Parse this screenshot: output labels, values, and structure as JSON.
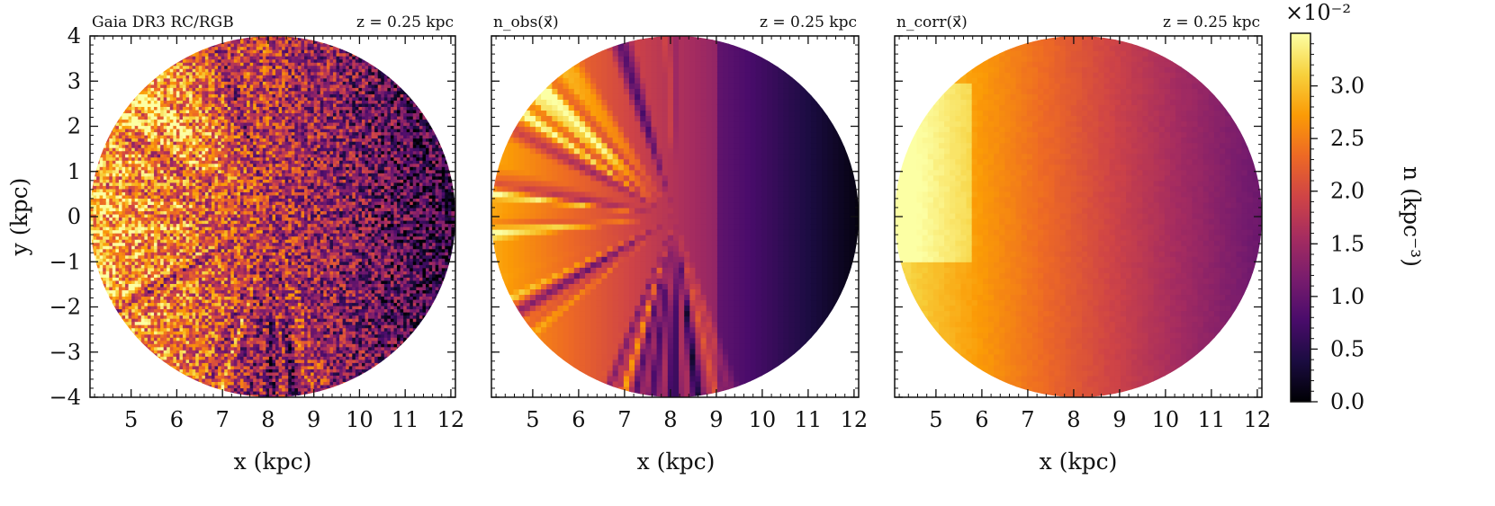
{
  "chart_data": [
    {
      "type": "heatmap",
      "title_left": "Gaia DR3 RC/RGB",
      "title_right": "z = 0.25 kpc",
      "xlabel": "x (kpc)",
      "ylabel": "y (kpc)",
      "xlim": [
        4.1,
        12.1
      ],
      "ylim": [
        -4,
        4
      ],
      "xticks": [
        "5",
        "6",
        "7",
        "8",
        "9",
        "10",
        "11",
        "12"
      ],
      "yticks": [
        "4",
        "3",
        "2",
        "1",
        "0",
        "−1",
        "−2",
        "−3",
        "−4"
      ],
      "field": "binned star counts (noisy)",
      "disk_center": [
        8.1,
        0.0
      ],
      "disk_radius": 4.0
    },
    {
      "type": "heatmap",
      "title_left": "n_obs(x⃗)",
      "title_right": "z = 0.25 kpc",
      "xlabel": "x (kpc)",
      "xlim": [
        4.1,
        12.1
      ],
      "ylim": [
        -4,
        4
      ],
      "xticks": [
        "5",
        "6",
        "7",
        "8",
        "9",
        "10",
        "11",
        "12"
      ],
      "field": "smoothed observed density",
      "disk_center": [
        8.1,
        0.0
      ],
      "disk_radius": 4.0
    },
    {
      "type": "heatmap",
      "title_left": "n_corr(x⃗)",
      "title_right": "z = 0.25 kpc",
      "xlabel": "x (kpc)",
      "xlim": [
        4.1,
        12.1
      ],
      "ylim": [
        -4,
        4
      ],
      "xticks": [
        "5",
        "6",
        "7",
        "8",
        "9",
        "10",
        "11",
        "12"
      ],
      "field": "extinction-corrected density",
      "disk_center": [
        8.1,
        0.0
      ],
      "disk_radius": 4.0
    }
  ],
  "colorbar": {
    "label": "n (kpc⁻³)",
    "scale_factor": "×10⁻²",
    "ticks": [
      "0.0",
      "0.5",
      "1.0",
      "1.5",
      "2.0",
      "2.5",
      "3.0"
    ],
    "range": [
      0,
      3.5
    ],
    "colormap": "inferno",
    "stops": [
      "#000004",
      "#1b0c41",
      "#4a0c6b",
      "#781c6d",
      "#a52c60",
      "#cf4446",
      "#ed6925",
      "#fb9b06",
      "#f7d13d",
      "#fcffa4"
    ]
  }
}
